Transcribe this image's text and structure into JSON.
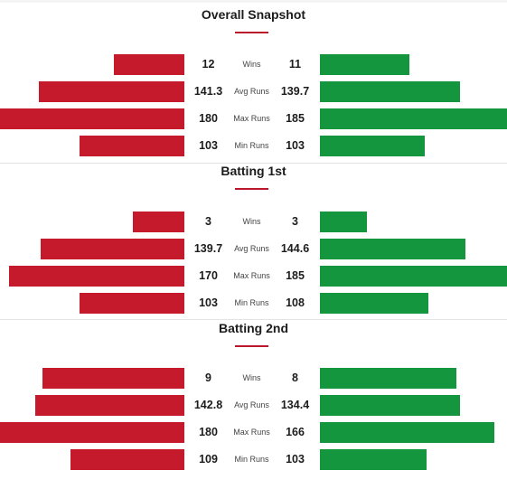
{
  "colors": {
    "team1": "#c41a2b",
    "team2": "#14963e",
    "accent": "#b8182a"
  },
  "sections": [
    {
      "title": "Overall Snapshot",
      "rows": [
        {
          "label": "Wins",
          "left": "12",
          "right": "11",
          "left_fill": 0.38,
          "right_fill": 0.48
        },
        {
          "label": "Avg Runs",
          "left": "141.3",
          "right": "139.7",
          "left_fill": 0.79,
          "right_fill": 0.75
        },
        {
          "label": "Max Runs",
          "left": "180",
          "right": "185",
          "left_fill": 1.0,
          "right_fill": 1.0
        },
        {
          "label": "Min Runs",
          "left": "103",
          "right": "103",
          "left_fill": 0.57,
          "right_fill": 0.56
        }
      ]
    },
    {
      "title": "Batting 1st",
      "rows": [
        {
          "label": "Wins",
          "left": "3",
          "right": "3",
          "left_fill": 0.28,
          "right_fill": 0.25
        },
        {
          "label": "Avg Runs",
          "left": "139.7",
          "right": "144.6",
          "left_fill": 0.78,
          "right_fill": 0.78
        },
        {
          "label": "Max Runs",
          "left": "170",
          "right": "185",
          "left_fill": 0.95,
          "right_fill": 1.0
        },
        {
          "label": "Min Runs",
          "left": "103",
          "right": "108",
          "left_fill": 0.57,
          "right_fill": 0.58
        }
      ]
    },
    {
      "title": "Batting 2nd",
      "rows": [
        {
          "label": "Wins",
          "left": "9",
          "right": "8",
          "left_fill": 0.77,
          "right_fill": 0.73
        },
        {
          "label": "Avg Runs",
          "left": "142.8",
          "right": "134.4",
          "left_fill": 0.81,
          "right_fill": 0.75
        },
        {
          "label": "Max Runs",
          "left": "180",
          "right": "166",
          "left_fill": 1.0,
          "right_fill": 0.93
        },
        {
          "label": "Min Runs",
          "left": "109",
          "right": "103",
          "left_fill": 0.62,
          "right_fill": 0.57
        }
      ]
    }
  ]
}
